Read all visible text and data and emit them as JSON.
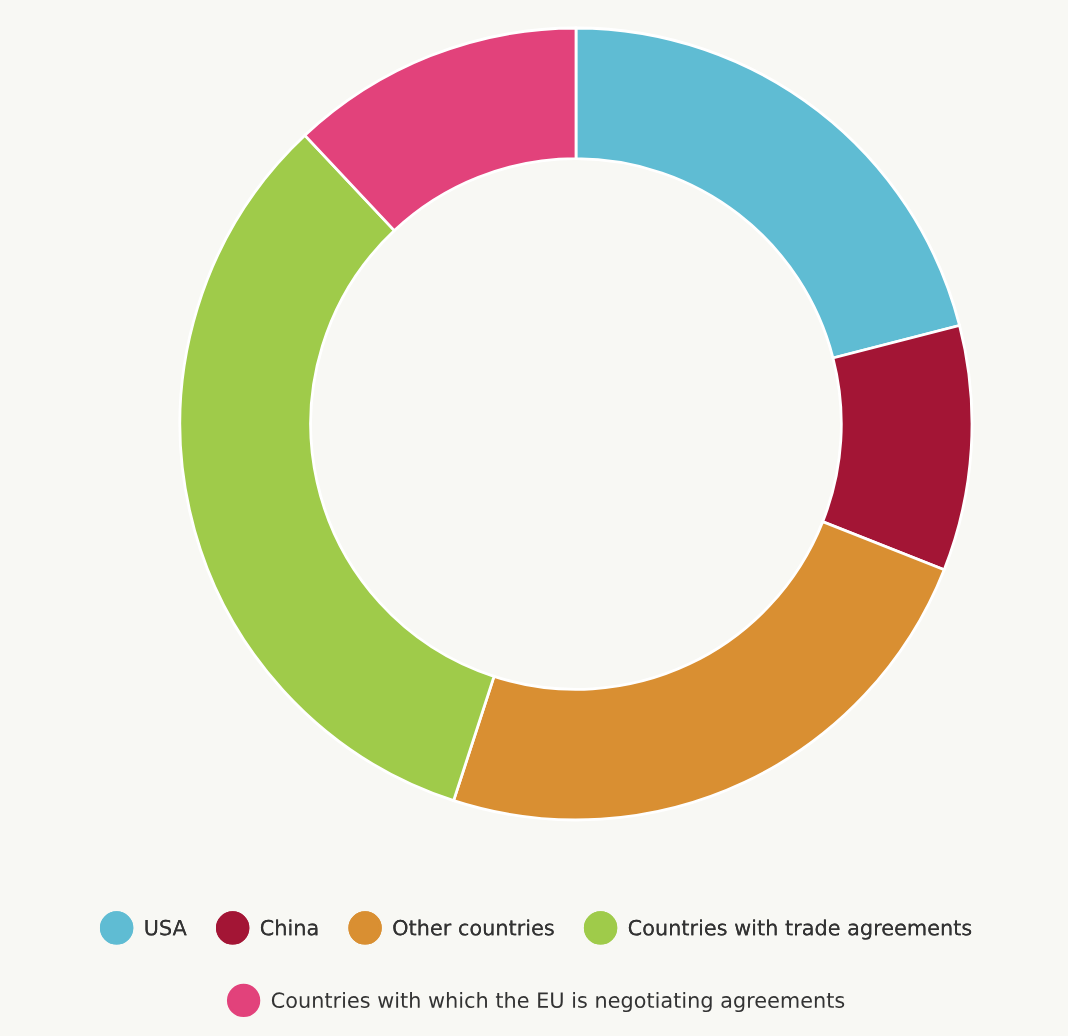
{
  "chart_data": {
    "type": "donut",
    "categories": [
      "USA",
      "China",
      "Other countries",
      "Countries with trade agreements",
      "Countries with which the EU is negotiating agreements"
    ],
    "values": [
      21,
      10,
      24,
      33,
      12
    ],
    "colors": [
      "#5fbcd3",
      "#a31535",
      "#d98f32",
      "#9fcb4a",
      "#e2427b"
    ],
    "legend": "bottom"
  }
}
